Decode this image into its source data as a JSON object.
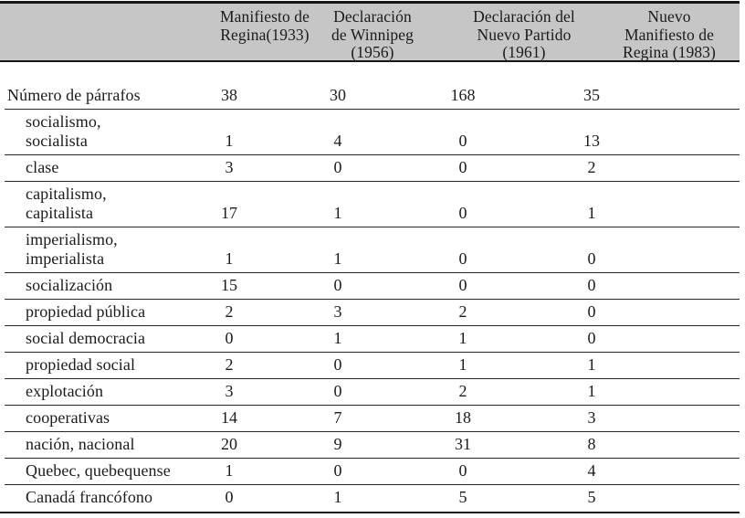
{
  "colors": {
    "header_background": "#c6c6c6",
    "rule_color": "#161616",
    "text_color": "#1b1b1b"
  },
  "table": {
    "columns": [
      "Manifiesto de\nRegina(1933)",
      "Declaración\nde Winnipeg\n(1956)",
      "Declaración del\nNuevo Partido\n(1961)",
      "Nuevo\nManifiesto de\nRegina (1983)"
    ],
    "rows": [
      {
        "label": "Número de párrafos",
        "values": [
          "38",
          "30",
          "168",
          "35"
        ]
      },
      {
        "label": "socialismo,\nsocialista",
        "values": [
          "1",
          "4",
          "0",
          "13"
        ]
      },
      {
        "label": "clase",
        "values": [
          "3",
          "0",
          "0",
          "2"
        ]
      },
      {
        "label": "capitalismo,\ncapitalista",
        "values": [
          "17",
          "1",
          "0",
          "1"
        ]
      },
      {
        "label": "imperialismo,\nimperialista",
        "values": [
          "1",
          "1",
          "0",
          "0"
        ]
      },
      {
        "label": "socialización",
        "values": [
          "15",
          "0",
          "0",
          "0"
        ]
      },
      {
        "label": "propiedad pública",
        "values": [
          "2",
          "3",
          "2",
          "0"
        ]
      },
      {
        "label": "social democracia",
        "values": [
          "0",
          "1",
          "1",
          "0"
        ]
      },
      {
        "label": "propiedad social",
        "values": [
          "2",
          "0",
          "1",
          "1"
        ]
      },
      {
        "label": "explotación",
        "values": [
          "3",
          "0",
          "2",
          "1"
        ]
      },
      {
        "label": "cooperativas",
        "values": [
          "14",
          "7",
          "18",
          "3"
        ]
      },
      {
        "label": "nación, nacional",
        "values": [
          "20",
          "9",
          "31",
          "8"
        ]
      },
      {
        "label": "Quebec, quebequense",
        "values": [
          "1",
          "0",
          "0",
          "4"
        ]
      },
      {
        "label": "Canadá francófono",
        "values": [
          "0",
          "1",
          "5",
          "5"
        ]
      }
    ]
  }
}
